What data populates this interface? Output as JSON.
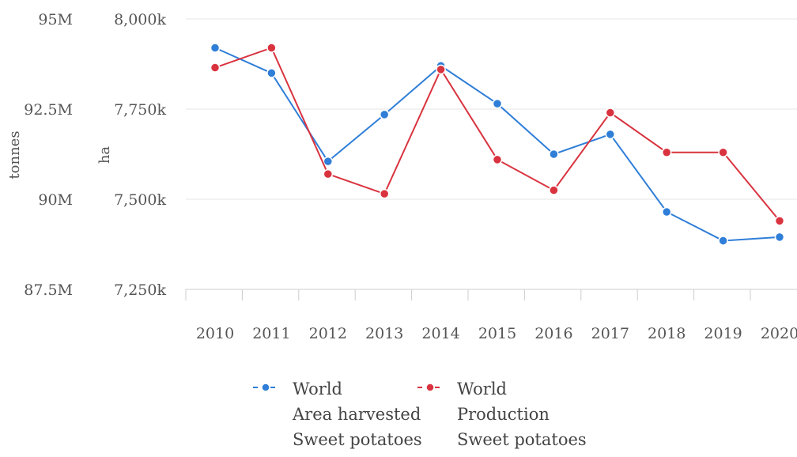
{
  "chart_data": {
    "type": "line",
    "categories": [
      "2010",
      "2011",
      "2012",
      "2013",
      "2014",
      "2015",
      "2016",
      "2017",
      "2018",
      "2019",
      "2020"
    ],
    "series": [
      {
        "name": "World Area harvested Sweet potatoes",
        "axis": "right",
        "unit": "ha",
        "color": "#2f7ed8",
        "values": [
          7920,
          7850,
          7605,
          7735,
          7870,
          7765,
          7625,
          7680,
          7465,
          7385,
          7395
        ],
        "legend_lines": [
          "World",
          "Area harvested",
          "Sweet potatoes"
        ]
      },
      {
        "name": "World Production Sweet potatoes",
        "axis": "left",
        "unit": "tonnes",
        "color": "#d9333f",
        "values": [
          93.65,
          94.2,
          90.7,
          90.15,
          93.6,
          91.1,
          90.25,
          92.4,
          91.3,
          91.3,
          89.4
        ],
        "legend_lines": [
          "World",
          "Production",
          "Sweet potatoes"
        ]
      }
    ],
    "left_axis": {
      "title": "tonnes",
      "ylim": [
        87.5,
        95
      ],
      "ticks": [
        87.5,
        90,
        92.5,
        95
      ],
      "tick_labels": [
        "87.5M",
        "90M",
        "92.5M",
        "95M"
      ]
    },
    "right_axis": {
      "title": "ha",
      "ylim": [
        7250,
        8000
      ],
      "ticks": [
        7250,
        7500,
        7750,
        8000
      ],
      "tick_labels": [
        "7,250k",
        "7,500k",
        "7,750k",
        "8,000k"
      ]
    },
    "grid": true,
    "legend_position": "bottom"
  }
}
